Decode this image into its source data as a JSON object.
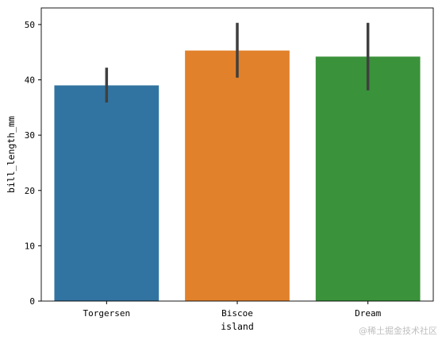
{
  "chart_data": {
    "type": "bar",
    "categories": [
      "Torgersen",
      "Biscoe",
      "Dream"
    ],
    "values": [
      39.0,
      45.3,
      44.2
    ],
    "error_low": [
      35.9,
      40.4,
      38.1
    ],
    "error_high": [
      42.2,
      50.3,
      50.3
    ],
    "colors": [
      "#3274a1",
      "#e1812c",
      "#3a923a"
    ],
    "error_color": "#3f3f3f",
    "xlabel": "island",
    "ylabel": "bill_length_mm",
    "ylim": [
      0,
      53
    ],
    "yticks": [
      0,
      10,
      20,
      30,
      40,
      50
    ],
    "grid": false
  },
  "watermark": "@稀土掘金技术社区"
}
